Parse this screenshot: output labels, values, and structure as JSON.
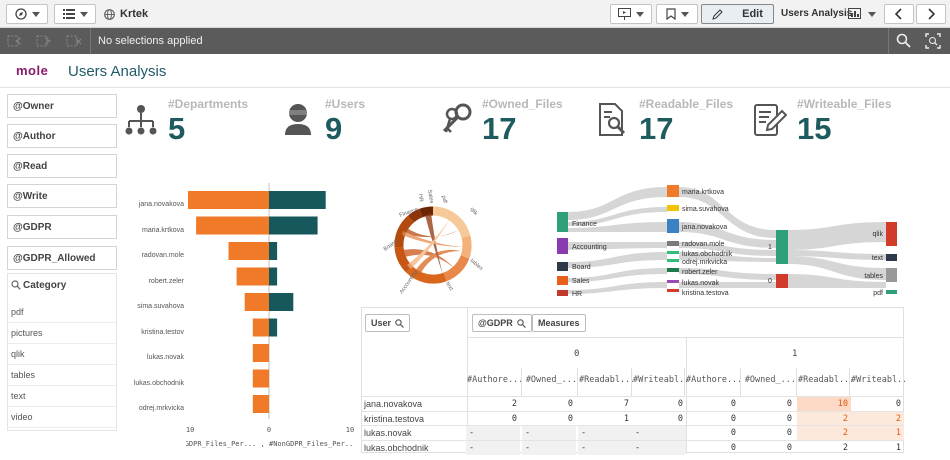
{
  "app": {
    "name": "Krtek",
    "sheet_title": "Users Analysis",
    "edit_label": "Edit",
    "sheet_selector": "Users Analysis"
  },
  "selection": {
    "status": "No selections applied"
  },
  "logo": {
    "text": "mole"
  },
  "filters": [
    "@Owner",
    "@Author",
    "@Read",
    "@Write",
    "@GDPR",
    "@GDPR_Allowed"
  ],
  "category": {
    "title": "Category",
    "items": [
      "pdf",
      "pictures",
      "qlik",
      "tables",
      "text",
      "video"
    ]
  },
  "kpis": [
    {
      "label": "#Departments",
      "value": "5",
      "icon": "org-chart-icon"
    },
    {
      "label": "#Users",
      "value": "9",
      "icon": "user-icon"
    },
    {
      "label": "#Owned_Files",
      "value": "17",
      "icon": "keys-icon"
    },
    {
      "label": "#Readable_Files",
      "value": "17",
      "icon": "document-search-icon"
    },
    {
      "label": "#Writeable_Files",
      "value": "15",
      "icon": "edit-document-icon"
    }
  ],
  "chart_data": [
    {
      "type": "bar",
      "orientation": "horizontal-diverging",
      "categories": [
        "jana.novakova",
        "maria.krtkova",
        "radovan.mole",
        "robert.zeler",
        "sima.suvahova",
        "kristina.testov",
        "lukas.novak",
        "lukas.obchodnik",
        "odrej.mrkvicka"
      ],
      "series": [
        {
          "name": "#GDPR_Files_Per...",
          "values": [
            -10,
            -9,
            -5,
            -4,
            -3,
            -2,
            -2,
            -2,
            -2
          ],
          "color": "#f07a28"
        },
        {
          "name": "#NonGDPR_Files_Per...",
          "values": [
            7,
            6,
            1,
            1,
            3,
            1,
            0,
            0,
            0
          ],
          "color": "#17585c"
        }
      ],
      "xlim": [
        -10,
        10
      ],
      "ticks": [
        "-10",
        "0",
        "10"
      ],
      "xlabel": "#GDPR_Files_Per... , #NonGDPR_Files_Per..."
    },
    {
      "type": "chord",
      "labels": [
        "Finance",
        "Board",
        "Accounting",
        "text",
        "tables",
        "qlik",
        "pdf",
        "Sales",
        "HR"
      ]
    },
    {
      "type": "sankey",
      "left": [
        "Finance",
        "Accounting",
        "Board",
        "Sales",
        "HR"
      ],
      "middle": [
        "maria.krtkova",
        "sima.suvahova",
        "jana.novakova",
        "radovan.mole",
        "lukas.obchodnik",
        "odrej.mrkvicka",
        "robert.zeler",
        "lukas.novak",
        "kristina.testova"
      ],
      "gdpr": [
        "1",
        "0"
      ],
      "right": [
        "qlik",
        "text",
        "tables",
        "pdf"
      ]
    }
  ],
  "pivot": {
    "row_dim": "User",
    "col_dim": "@GDPR",
    "measures_label": "Measures",
    "col_groups": [
      "0",
      "1"
    ],
    "measures": [
      "#Authore...",
      "#Owned_...",
      "#Readabl...",
      "#Writeabl..."
    ],
    "rows": [
      {
        "user": "jana.novakova",
        "vals": [
          "2",
          "0",
          "7",
          "0",
          "0",
          "0",
          "10",
          "0"
        ]
      },
      {
        "user": "kristina.testova",
        "vals": [
          "0",
          "0",
          "1",
          "0",
          "0",
          "0",
          "2",
          "2"
        ]
      },
      {
        "user": "lukas.novak",
        "vals": [
          "-",
          "-",
          "-",
          "-",
          "0",
          "0",
          "2",
          "1"
        ]
      },
      {
        "user": "lukas.obchodnik",
        "vals": [
          "-",
          "-",
          "-",
          "-",
          "0",
          "0",
          "2",
          "1"
        ]
      }
    ]
  },
  "colors": {
    "accent": "#1d5b5e",
    "orange": "#f07a28",
    "teal": "#17585c",
    "selbar": "#5b5b5b"
  }
}
